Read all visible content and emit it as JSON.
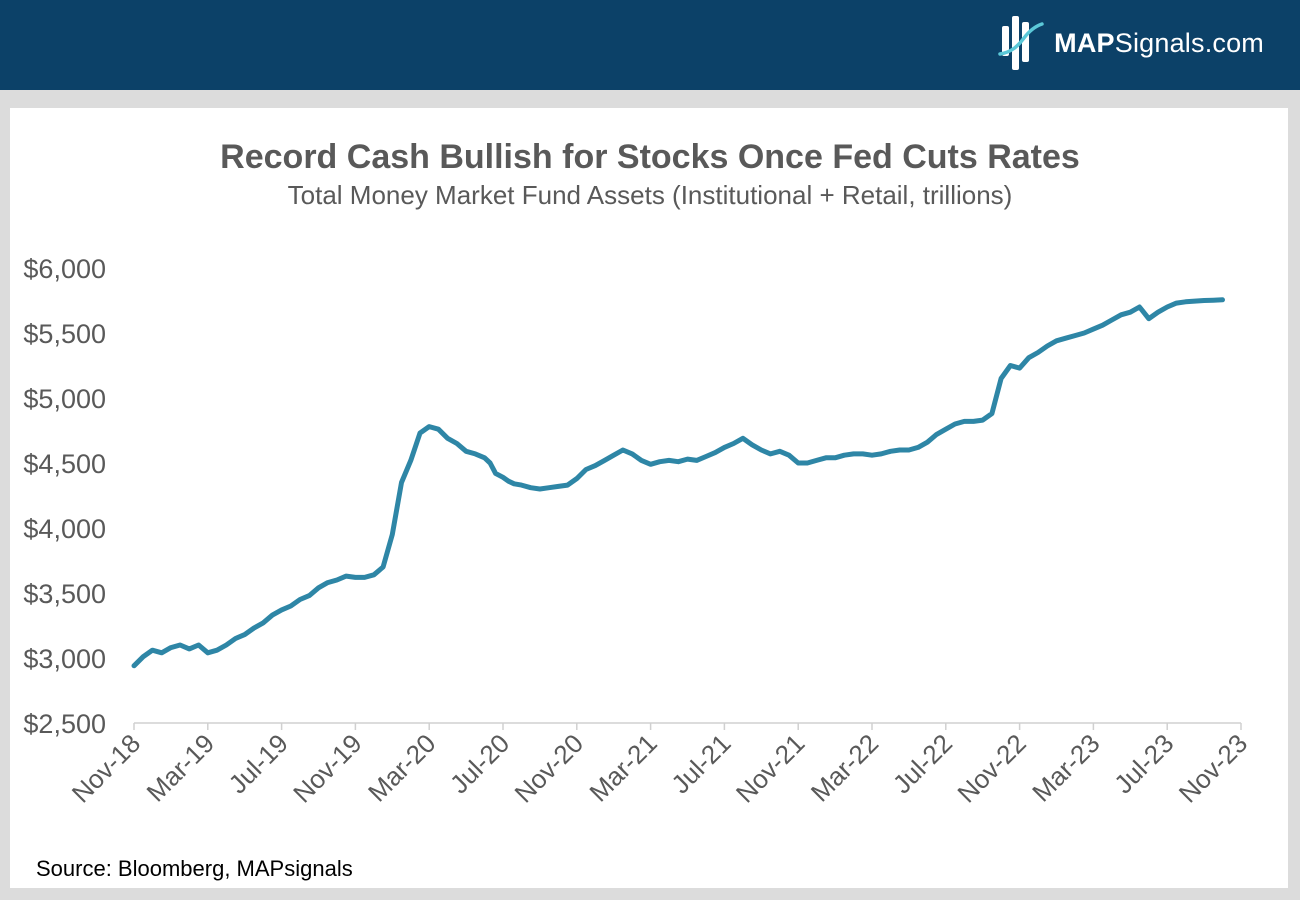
{
  "header": {
    "brand_bold": "MAP",
    "brand_rest": "Signals.com",
    "logo_icon": "mapsignals-logo-icon",
    "colors": {
      "header_bg": "#0c4168",
      "line": "#2e86a6",
      "logo_accent": "#5bc8d8"
    }
  },
  "chart_data": {
    "type": "line",
    "title": "Record Cash Bullish for Stocks Once Fed Cuts Rates",
    "subtitle": "Total Money Market Fund Assets (Institutional + Retail, trillions)",
    "source": "Source: Bloomberg, MAPsignals",
    "ylim": [
      2500,
      6000
    ],
    "yticks": [
      2500,
      3000,
      3500,
      4000,
      4500,
      5000,
      5500,
      6000
    ],
    "ytick_labels": [
      "$2,500",
      "$3,000",
      "$3,500",
      "$4,000",
      "$4,500",
      "$5,000",
      "$5,500",
      "$6,000"
    ],
    "xtick_labels": [
      "Nov-18",
      "Mar-19",
      "Jul-19",
      "Nov-19",
      "Mar-20",
      "Jul-20",
      "Nov-20",
      "Mar-21",
      "Jul-21",
      "Nov-21",
      "Mar-22",
      "Jul-22",
      "Nov-22",
      "Mar-23",
      "Jul-23",
      "Nov-23"
    ],
    "x_start": "Nov-18",
    "x_end": "Nov-23",
    "x_step_months": 4,
    "grid": false,
    "series": [
      {
        "color": "#2e86a6",
        "x_months_from_start": [
          0,
          0.5,
          1,
          1.5,
          2,
          2.5,
          3,
          3.5,
          4,
          4.5,
          5,
          5.5,
          6,
          6.5,
          7,
          7.5,
          8,
          8.5,
          9,
          9.5,
          10,
          10.5,
          11,
          11.5,
          12,
          12.5,
          13,
          13.5,
          14,
          14.5,
          15,
          15.5,
          16,
          16.5,
          17,
          17.5,
          18,
          18.5,
          19,
          19.3,
          19.6,
          20,
          20.3,
          20.6,
          21,
          21.5,
          22,
          22.5,
          23,
          23.5,
          24,
          24.5,
          25,
          25.5,
          26,
          26.5,
          27,
          27.5,
          28,
          28.5,
          29,
          29.5,
          30,
          30.5,
          31,
          31.5,
          32,
          32.5,
          33,
          33.5,
          34,
          34.5,
          35,
          35.5,
          36,
          36.5,
          37,
          37.5,
          38,
          38.5,
          39,
          39.5,
          40,
          40.5,
          41,
          41.5,
          42,
          42.5,
          43,
          43.5,
          44,
          44.5,
          45,
          45.5,
          46,
          46.5,
          47,
          47.5,
          48,
          48.5,
          49,
          49.5,
          50,
          50.5,
          51,
          51.5,
          52,
          52.5,
          53,
          53.5,
          54,
          54.5,
          55,
          55.5,
          56,
          56.5,
          57,
          57.5,
          58,
          58.5,
          59,
          59.5,
          60
        ],
        "values": [
          2940,
          3010,
          3060,
          3040,
          3080,
          3100,
          3070,
          3100,
          3040,
          3060,
          3100,
          3150,
          3180,
          3230,
          3270,
          3330,
          3370,
          3400,
          3450,
          3480,
          3540,
          3580,
          3600,
          3630,
          3620,
          3620,
          3640,
          3700,
          3950,
          4350,
          4520,
          4730,
          4780,
          4760,
          4690,
          4650,
          4590,
          4570,
          4540,
          4500,
          4420,
          4390,
          4360,
          4340,
          4330,
          4310,
          4300,
          4310,
          4320,
          4330,
          4380,
          4450,
          4480,
          4520,
          4560,
          4600,
          4570,
          4520,
          4490,
          4510,
          4520,
          4510,
          4530,
          4520,
          4550,
          4580,
          4620,
          4650,
          4690,
          4640,
          4600,
          4570,
          4590,
          4560,
          4500,
          4500,
          4520,
          4540,
          4540,
          4560,
          4570,
          4570,
          4560,
          4570,
          4590,
          4600,
          4600,
          4620,
          4660,
          4720,
          4760,
          4800,
          4820,
          4820,
          4830,
          4880,
          5150,
          5250,
          5230,
          5310,
          5350,
          5400,
          5440,
          5460,
          5480,
          5500,
          5530,
          5560,
          5600,
          5640,
          5660,
          5700,
          5610,
          5660,
          5700,
          5730,
          5740,
          5745,
          5750,
          5752,
          5755
        ]
      }
    ]
  }
}
